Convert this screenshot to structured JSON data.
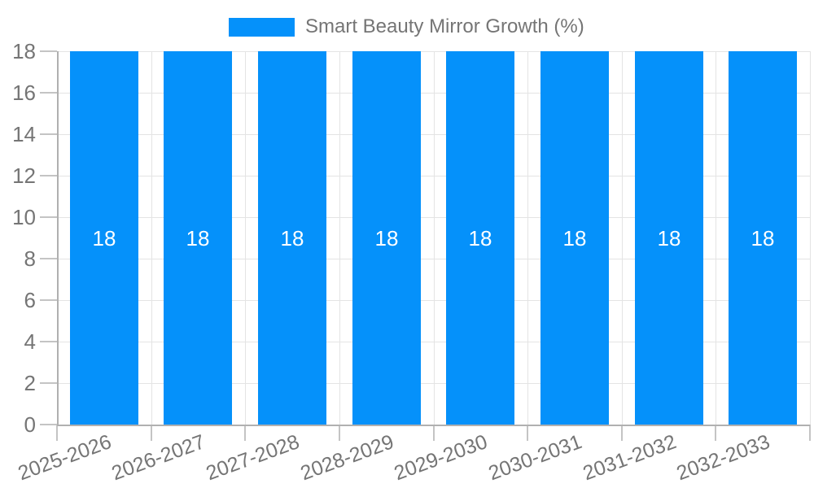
{
  "chart_data": {
    "type": "bar",
    "title": "Smart Beauty Mirror Growth (%)",
    "categories": [
      "2025-2026",
      "2026-2027",
      "2027-2028",
      "2028-2029",
      "2029-2030",
      "2030-2031",
      "2031-2032",
      "2032-2033"
    ],
    "series": [
      {
        "name": "Smart Beauty Mirror Growth (%)",
        "values": [
          18,
          18,
          18,
          18,
          18,
          18,
          18,
          18
        ]
      }
    ],
    "bar_value_labels": [
      "18",
      "18",
      "18",
      "18",
      "18",
      "18",
      "18",
      "18"
    ],
    "xlabel": "",
    "ylabel": "",
    "ylim": [
      0,
      18
    ],
    "ytick_step": 2,
    "ytick_labels": [
      "0",
      "2",
      "4",
      "6",
      "8",
      "10",
      "12",
      "14",
      "16",
      "18"
    ],
    "grid": true,
    "legend_position": "top-center",
    "colors": {
      "bar": "#0591fa",
      "bar_value_label": "#ffffff",
      "axis_text": "#757575",
      "legend_text": "#757575"
    }
  }
}
